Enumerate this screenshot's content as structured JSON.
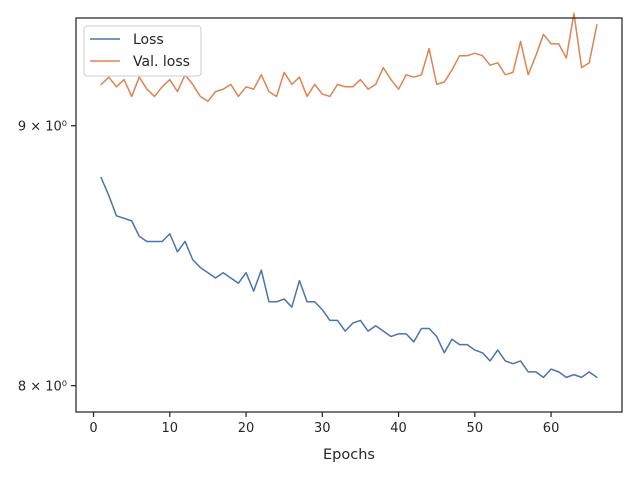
{
  "chart_data": {
    "type": "line",
    "title": "",
    "xlabel": "Epochs",
    "ylabel": "",
    "yscale": "log",
    "xlim": [
      -2.3,
      69.3
    ],
    "ylim": [
      7.905,
      9.45
    ],
    "x_ticks": [
      0,
      10,
      20,
      30,
      40,
      50,
      60
    ],
    "x_tick_labels": [
      "0",
      "10",
      "20",
      "30",
      "40",
      "50",
      "60"
    ],
    "y_ticks": [
      8,
      9
    ],
    "y_tick_labels": [
      "8 × 10⁰",
      "9 × 10⁰"
    ],
    "grid": false,
    "legend": {
      "position": "top-left",
      "entries": [
        "Loss",
        "Val. loss"
      ]
    },
    "x": [
      1,
      2,
      3,
      4,
      5,
      6,
      7,
      8,
      9,
      10,
      11,
      12,
      13,
      14,
      15,
      16,
      17,
      18,
      19,
      20,
      21,
      22,
      23,
      24,
      25,
      26,
      27,
      28,
      29,
      30,
      31,
      32,
      33,
      34,
      35,
      36,
      37,
      38,
      39,
      40,
      41,
      42,
      43,
      44,
      45,
      46,
      47,
      48,
      49,
      50,
      51,
      52,
      53,
      54,
      55,
      56,
      57,
      58,
      59,
      60,
      61,
      62,
      63,
      64,
      65,
      66
    ],
    "series": [
      {
        "name": "Loss",
        "color": "#4c72b0",
        "values": [
          8.79,
          8.72,
          8.64,
          8.63,
          8.62,
          8.56,
          8.54,
          8.54,
          8.54,
          8.57,
          8.5,
          8.54,
          8.47,
          8.44,
          8.42,
          8.4,
          8.42,
          8.4,
          8.38,
          8.42,
          8.35,
          8.43,
          8.31,
          8.31,
          8.32,
          8.29,
          8.39,
          8.31,
          8.31,
          8.28,
          8.24,
          8.24,
          8.2,
          8.23,
          8.24,
          8.2,
          8.22,
          8.2,
          8.18,
          8.19,
          8.19,
          8.16,
          8.21,
          8.21,
          8.18,
          8.12,
          8.17,
          8.15,
          8.15,
          8.13,
          8.12,
          8.09,
          8.13,
          8.09,
          8.08,
          8.09,
          8.05,
          8.05,
          8.03,
          8.06,
          8.05,
          8.03,
          8.04,
          8.03,
          8.05,
          8.03
        ]
      },
      {
        "name": "Val. loss",
        "color": "#dd8452",
        "values": [
          9.17,
          9.2,
          9.16,
          9.19,
          9.12,
          9.2,
          9.15,
          9.12,
          9.16,
          9.19,
          9.14,
          9.21,
          9.17,
          9.12,
          9.1,
          9.14,
          9.15,
          9.17,
          9.12,
          9.16,
          9.15,
          9.21,
          9.14,
          9.12,
          9.22,
          9.17,
          9.2,
          9.12,
          9.17,
          9.13,
          9.12,
          9.17,
          9.16,
          9.16,
          9.19,
          9.15,
          9.17,
          9.24,
          9.19,
          9.15,
          9.21,
          9.2,
          9.21,
          9.32,
          9.17,
          9.18,
          9.23,
          9.29,
          9.29,
          9.3,
          9.29,
          9.25,
          9.26,
          9.21,
          9.22,
          9.35,
          9.21,
          9.29,
          9.38,
          9.34,
          9.34,
          9.28,
          9.47,
          9.24,
          9.26,
          9.42
        ]
      }
    ]
  }
}
